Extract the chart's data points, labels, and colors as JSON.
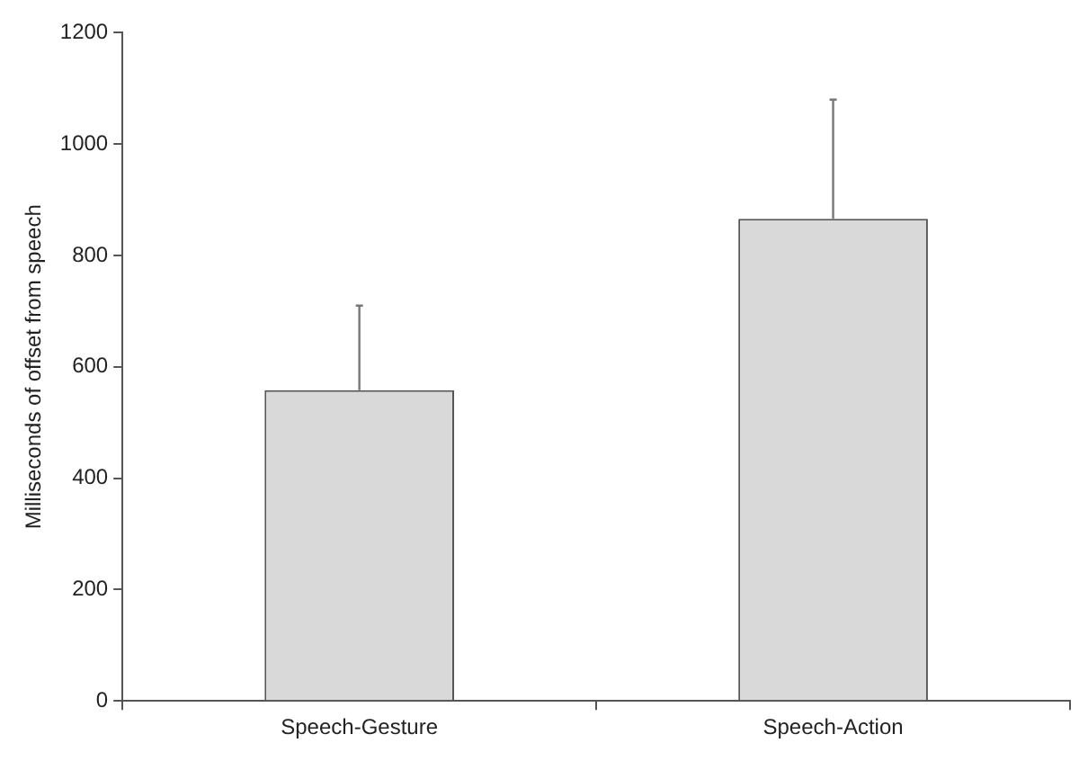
{
  "chart_data": {
    "type": "bar",
    "ylabel": "Milliseconds of offset from speech",
    "categories": [
      "Speech-Gesture",
      "Speech-Action"
    ],
    "values": [
      558,
      866
    ],
    "color": "#d9d9d9",
    "errors": [
      [
        558,
        710
      ],
      [
        866,
        1080
      ]
    ],
    "ylim": [
      0,
      1200
    ],
    "yticks": [
      0,
      200,
      400,
      600,
      800,
      1000,
      1200
    ],
    "grid": false
  }
}
